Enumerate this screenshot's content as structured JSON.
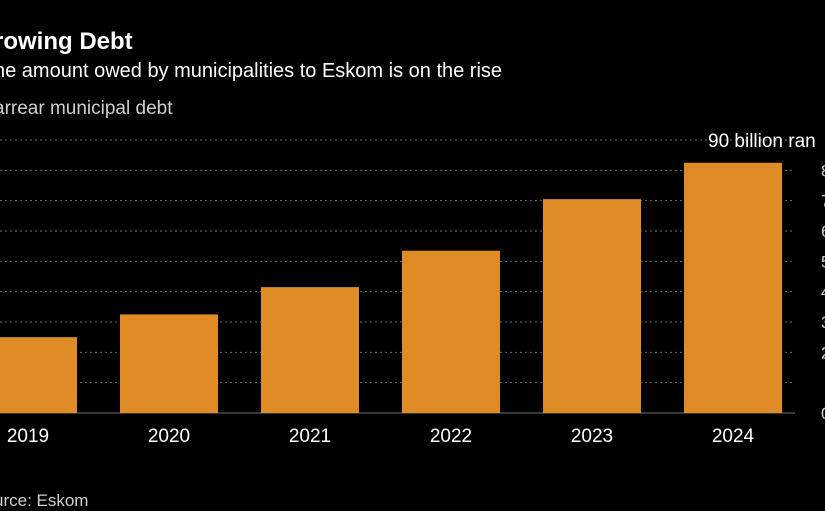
{
  "title": "rowing Debt",
  "subtitle": "he amount owed by municipalities to Eskom is on the rise",
  "legend_label": "arrear municipal debt",
  "source": "urce: Eskom",
  "colors": {
    "background": "#000000",
    "bar": "#df8c27",
    "gridline": "#6e6e6e",
    "text": "#ffffff",
    "muted_text": "#cfcfcf"
  },
  "chart_data": {
    "type": "bar",
    "categories": [
      "2019",
      "2020",
      "2021",
      "2022",
      "2023",
      "2024"
    ],
    "values": [
      25,
      32.5,
      41.5,
      53.5,
      70.5,
      82.5
    ],
    "ylim": [
      0,
      90
    ],
    "yticks": [
      0,
      10,
      20,
      30,
      40,
      50,
      60,
      70,
      80,
      90
    ],
    "ytick_labels": [
      "0",
      "",
      "2",
      "3",
      "4",
      "5",
      "6",
      "7",
      "8",
      "90 billion ran"
    ],
    "grid": true,
    "ylabel_position": "right"
  }
}
